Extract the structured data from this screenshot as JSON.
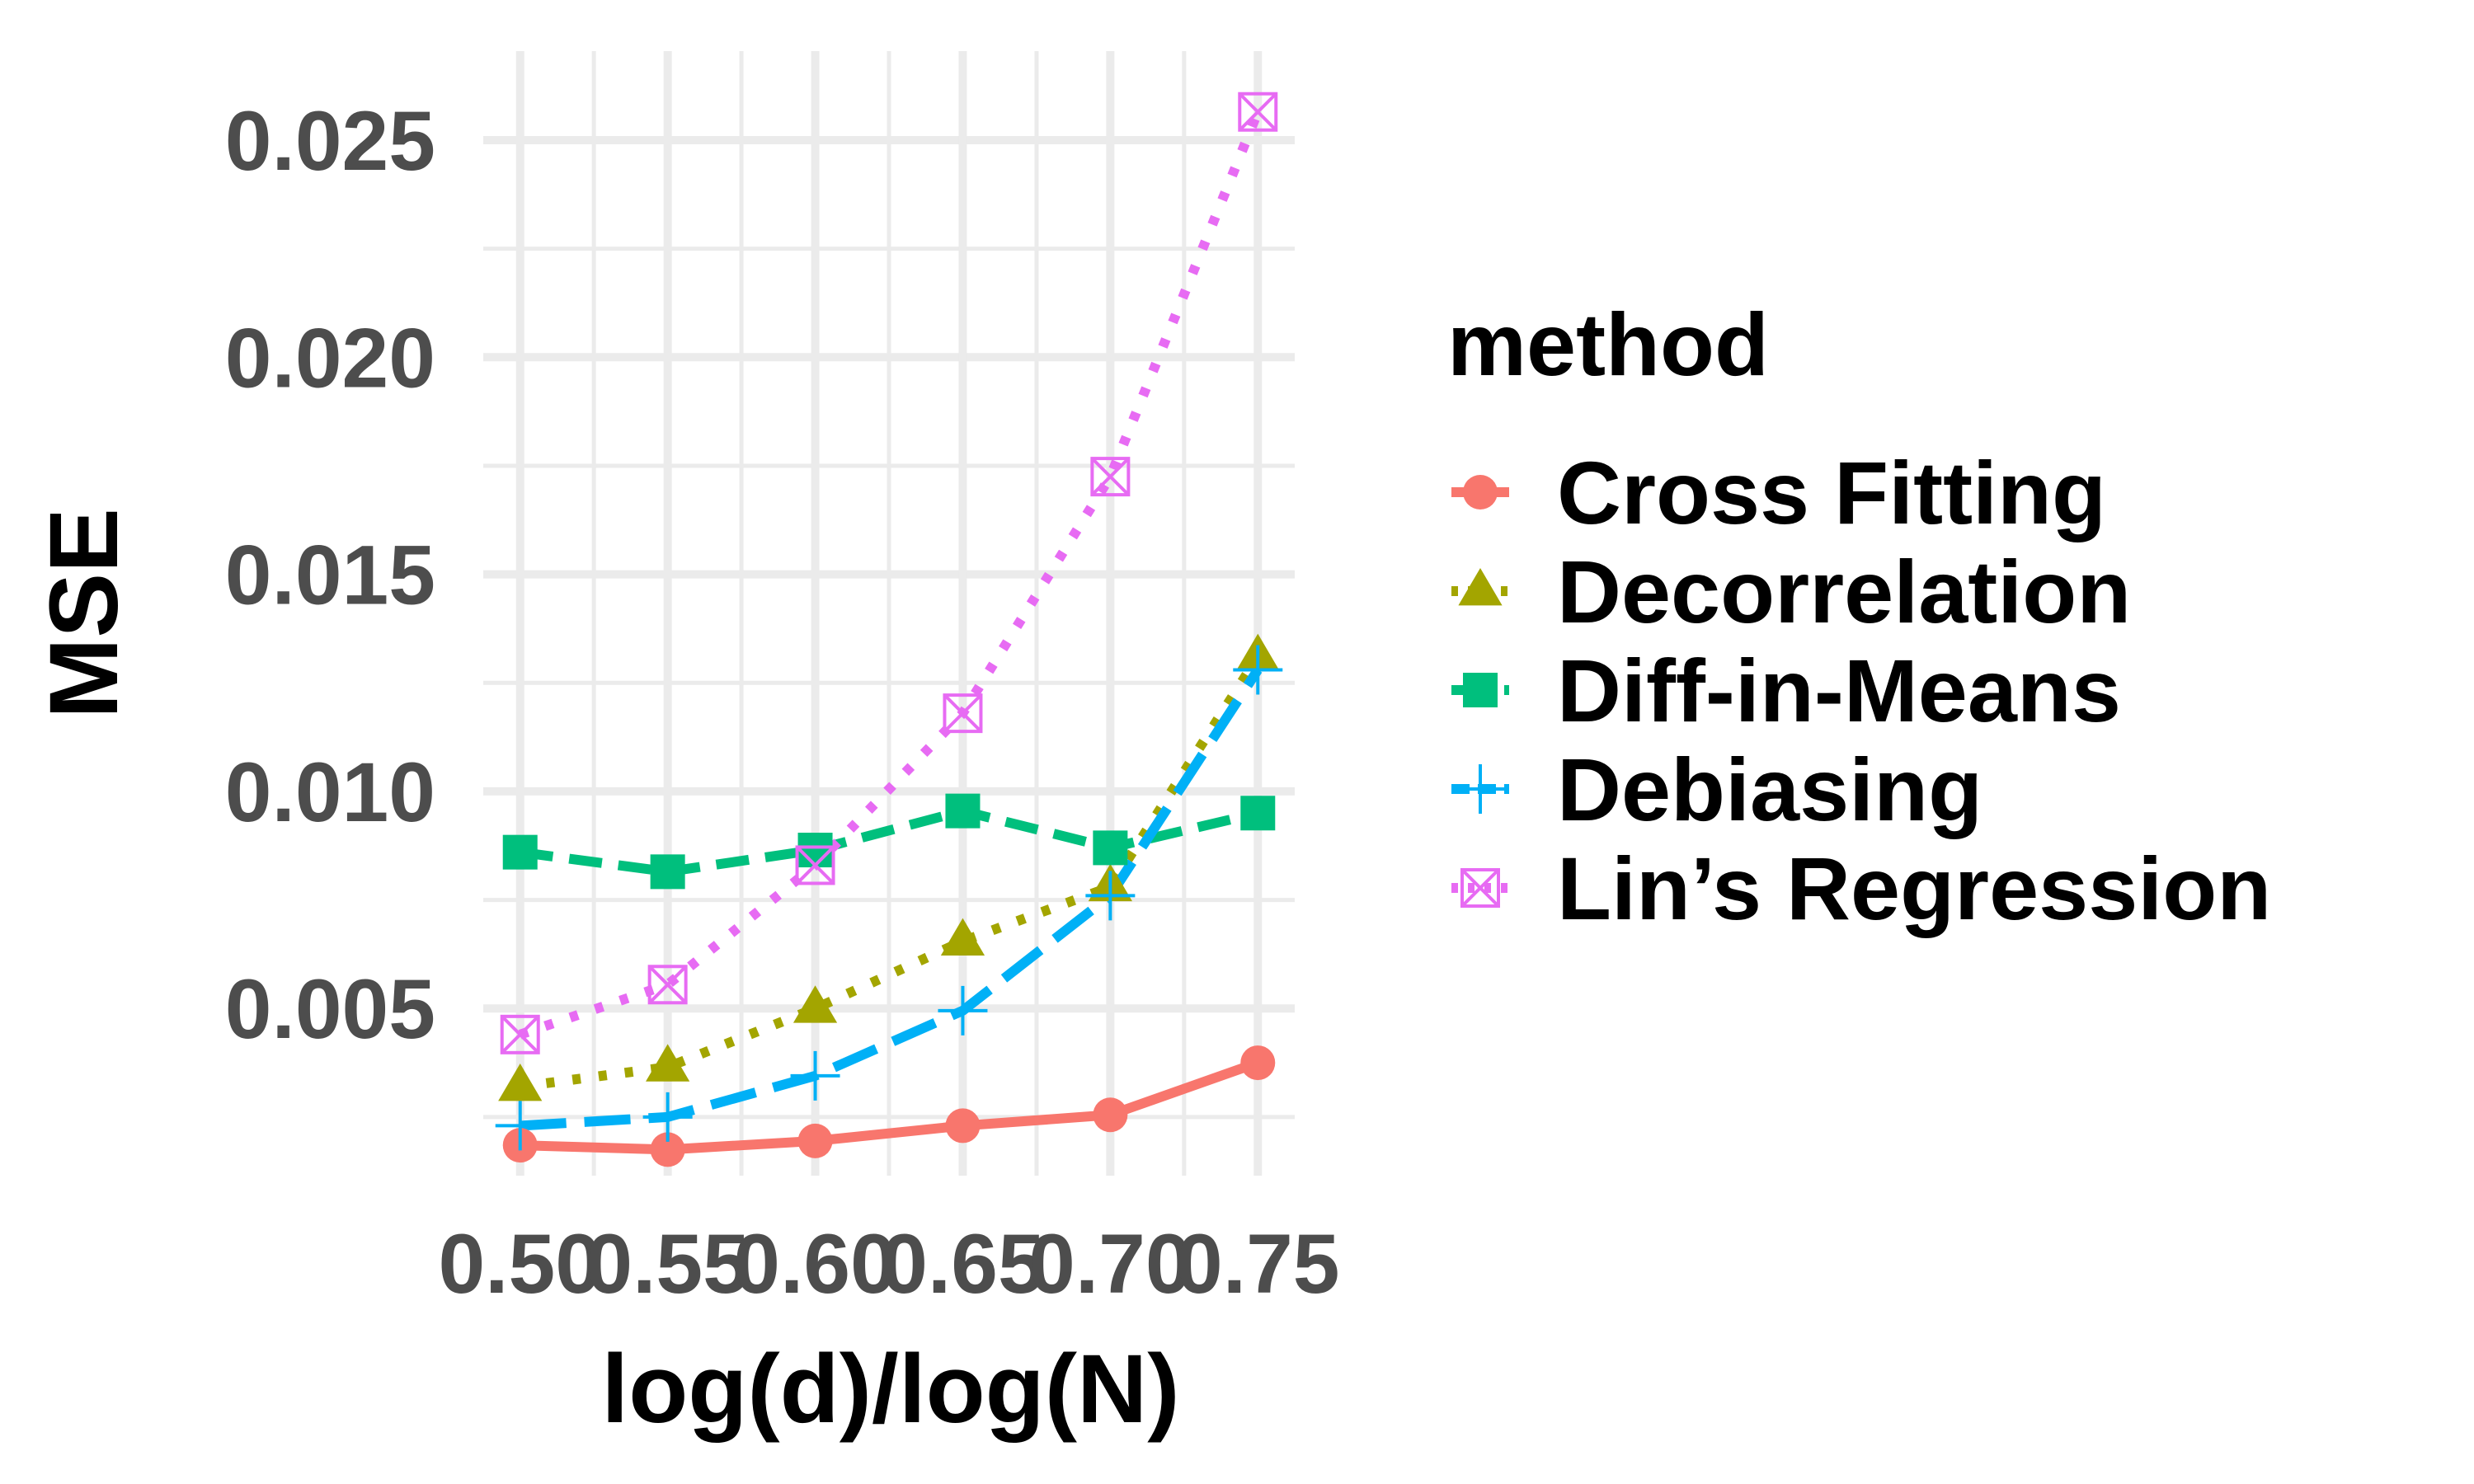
{
  "chart_data": {
    "type": "line",
    "title": "",
    "xlabel": "log(d)/log(N)",
    "ylabel": "MSE",
    "x": [
      0.5,
      0.55,
      0.6,
      0.65,
      0.7,
      0.75
    ],
    "x_tick_labels": [
      "0.50",
      "0.55",
      "0.60",
      "0.65",
      "0.70",
      "0.75"
    ],
    "y_tick_labels": [
      "0.005",
      "0.010",
      "0.015",
      "0.020",
      "0.025"
    ],
    "y_ticks": [
      0.005,
      0.01,
      0.015,
      0.02,
      0.025
    ],
    "xlim": [
      0.4875,
      0.7625
    ],
    "ylim": [
      0.00115,
      0.02705
    ],
    "grid": true,
    "legend": {
      "title": "method",
      "position": "right"
    },
    "series": [
      {
        "name": "Cross Fitting",
        "color": "#F8766D",
        "marker": "circle",
        "linestyle": "solid",
        "values": [
          0.00185,
          0.00175,
          0.00195,
          0.0023,
          0.00255,
          0.00375
        ]
      },
      {
        "name": "Decorrelation",
        "color": "#A3A500",
        "marker": "triangle",
        "linestyle": "dotted",
        "values": [
          0.0032,
          0.00365,
          0.005,
          0.00655,
          0.0078,
          0.0131
        ]
      },
      {
        "name": "Diff-in-Means",
        "color": "#00BF7D",
        "marker": "square",
        "linestyle": "dashed",
        "values": [
          0.0086,
          0.00815,
          0.00865,
          0.00955,
          0.0087,
          0.0095
        ]
      },
      {
        "name": "Debiasing",
        "color": "#00B0F6",
        "marker": "plus",
        "linestyle": "longdash",
        "values": [
          0.0023,
          0.0025,
          0.00345,
          0.00495,
          0.0076,
          0.0128
        ]
      },
      {
        "name": "Lin’s Regression",
        "color": "#E76BF3",
        "marker": "boxcross",
        "linestyle": "dotted",
        "values": [
          0.0044,
          0.00555,
          0.0083,
          0.0118,
          0.01725,
          0.02565
        ]
      }
    ]
  }
}
